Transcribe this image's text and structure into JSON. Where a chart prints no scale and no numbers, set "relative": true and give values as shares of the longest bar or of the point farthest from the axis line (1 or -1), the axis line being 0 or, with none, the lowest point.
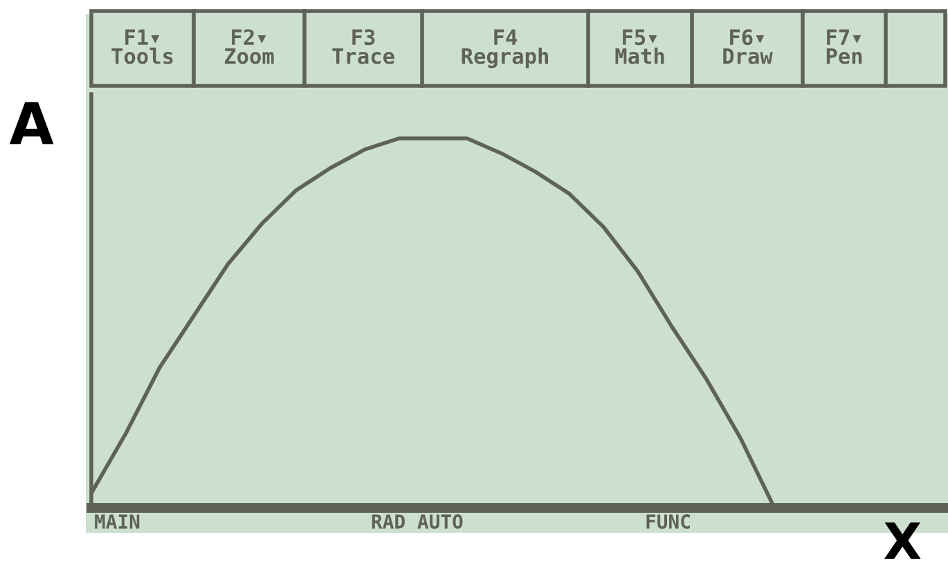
{
  "chart_data": {
    "type": "line",
    "relative": true,
    "xlabel": "X",
    "ylabel": "A",
    "color": "#5f6258",
    "marker": "none",
    "line_style": "solid",
    "categories": [
      null,
      null,
      null,
      null,
      null,
      null,
      null,
      null,
      null,
      null,
      null,
      null,
      null,
      null,
      null,
      null,
      null,
      null,
      null,
      null,
      null,
      null,
      null,
      null,
      null,
      null
    ],
    "values": [
      0.04,
      0.2,
      0.38,
      0.52,
      0.66,
      0.77,
      0.86,
      0.92,
      0.97,
      1.0,
      1.0,
      1.0,
      0.96,
      0.91,
      0.85,
      0.76,
      0.64,
      0.49,
      0.35,
      0.19,
      0.0,
      null,
      null,
      null,
      null,
      null
    ],
    "annotations": [
      "F1▾\nTools",
      "F2▾\nZoom",
      "F3\nTrace",
      "F4\nRegraph",
      "F5▾\nMath",
      "F6▾\nDraw",
      "F7▾\nPen",
      "MAIN",
      "RAD AUTO",
      "FUNC"
    ]
  }
}
